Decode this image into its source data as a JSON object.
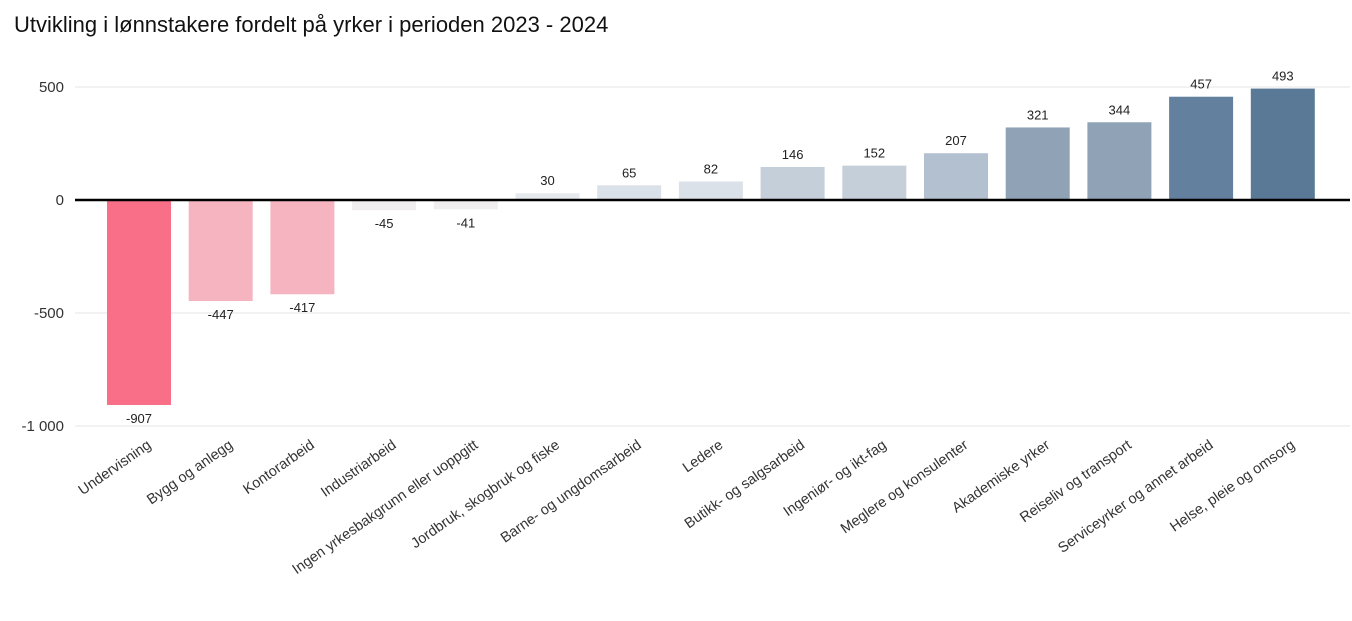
{
  "chart_data": {
    "type": "bar",
    "title": "Utvikling i lønnstakere fordelt på yrker i perioden 2023 - 2024",
    "xlabel": "",
    "ylabel": "",
    "ylim": [
      -1000,
      500
    ],
    "yticks": [
      500,
      0,
      -500,
      -1000
    ],
    "ytick_labels": [
      "500",
      "0",
      "-500",
      "-1 000"
    ],
    "grid": true,
    "legend": "none",
    "categories": [
      "Undervisning",
      "Bygg og anlegg",
      "Kontorarbeid",
      "Industriarbeid",
      "Ingen yrkesbakgrunn eller uoppgitt",
      "Jordbruk, skogbruk og fiske",
      "Barne- og ungdomsarbeid",
      "Ledere",
      "Butikk- og salgsarbeid",
      "Ingeniør- og ikt-fag",
      "Meglere og konsulenter",
      "Akademiske yrker",
      "Reiseliv og transport",
      "Serviceyrker og annet arbeid",
      "Helse, pleie og omsorg"
    ],
    "values": [
      -907,
      -447,
      -417,
      -45,
      -41,
      30,
      65,
      82,
      146,
      152,
      207,
      321,
      344,
      457,
      493
    ],
    "value_labels": [
      "-907",
      "-447",
      "-417",
      "-45",
      "-41",
      "30",
      "65",
      "82",
      "146",
      "152",
      "207",
      "321",
      "344",
      "457",
      "493"
    ],
    "colors": [
      "#f96f87",
      "#f6b4c1",
      "#f6b4c1",
      "#f0eeef",
      "#f0eeef",
      "#e6eaee",
      "#dbe1e8",
      "#dbe1e8",
      "#c5cfda",
      "#c5cfda",
      "#b3c0cf",
      "#8fa2b6",
      "#8fa2b6",
      "#63819e",
      "#5a7996"
    ]
  }
}
